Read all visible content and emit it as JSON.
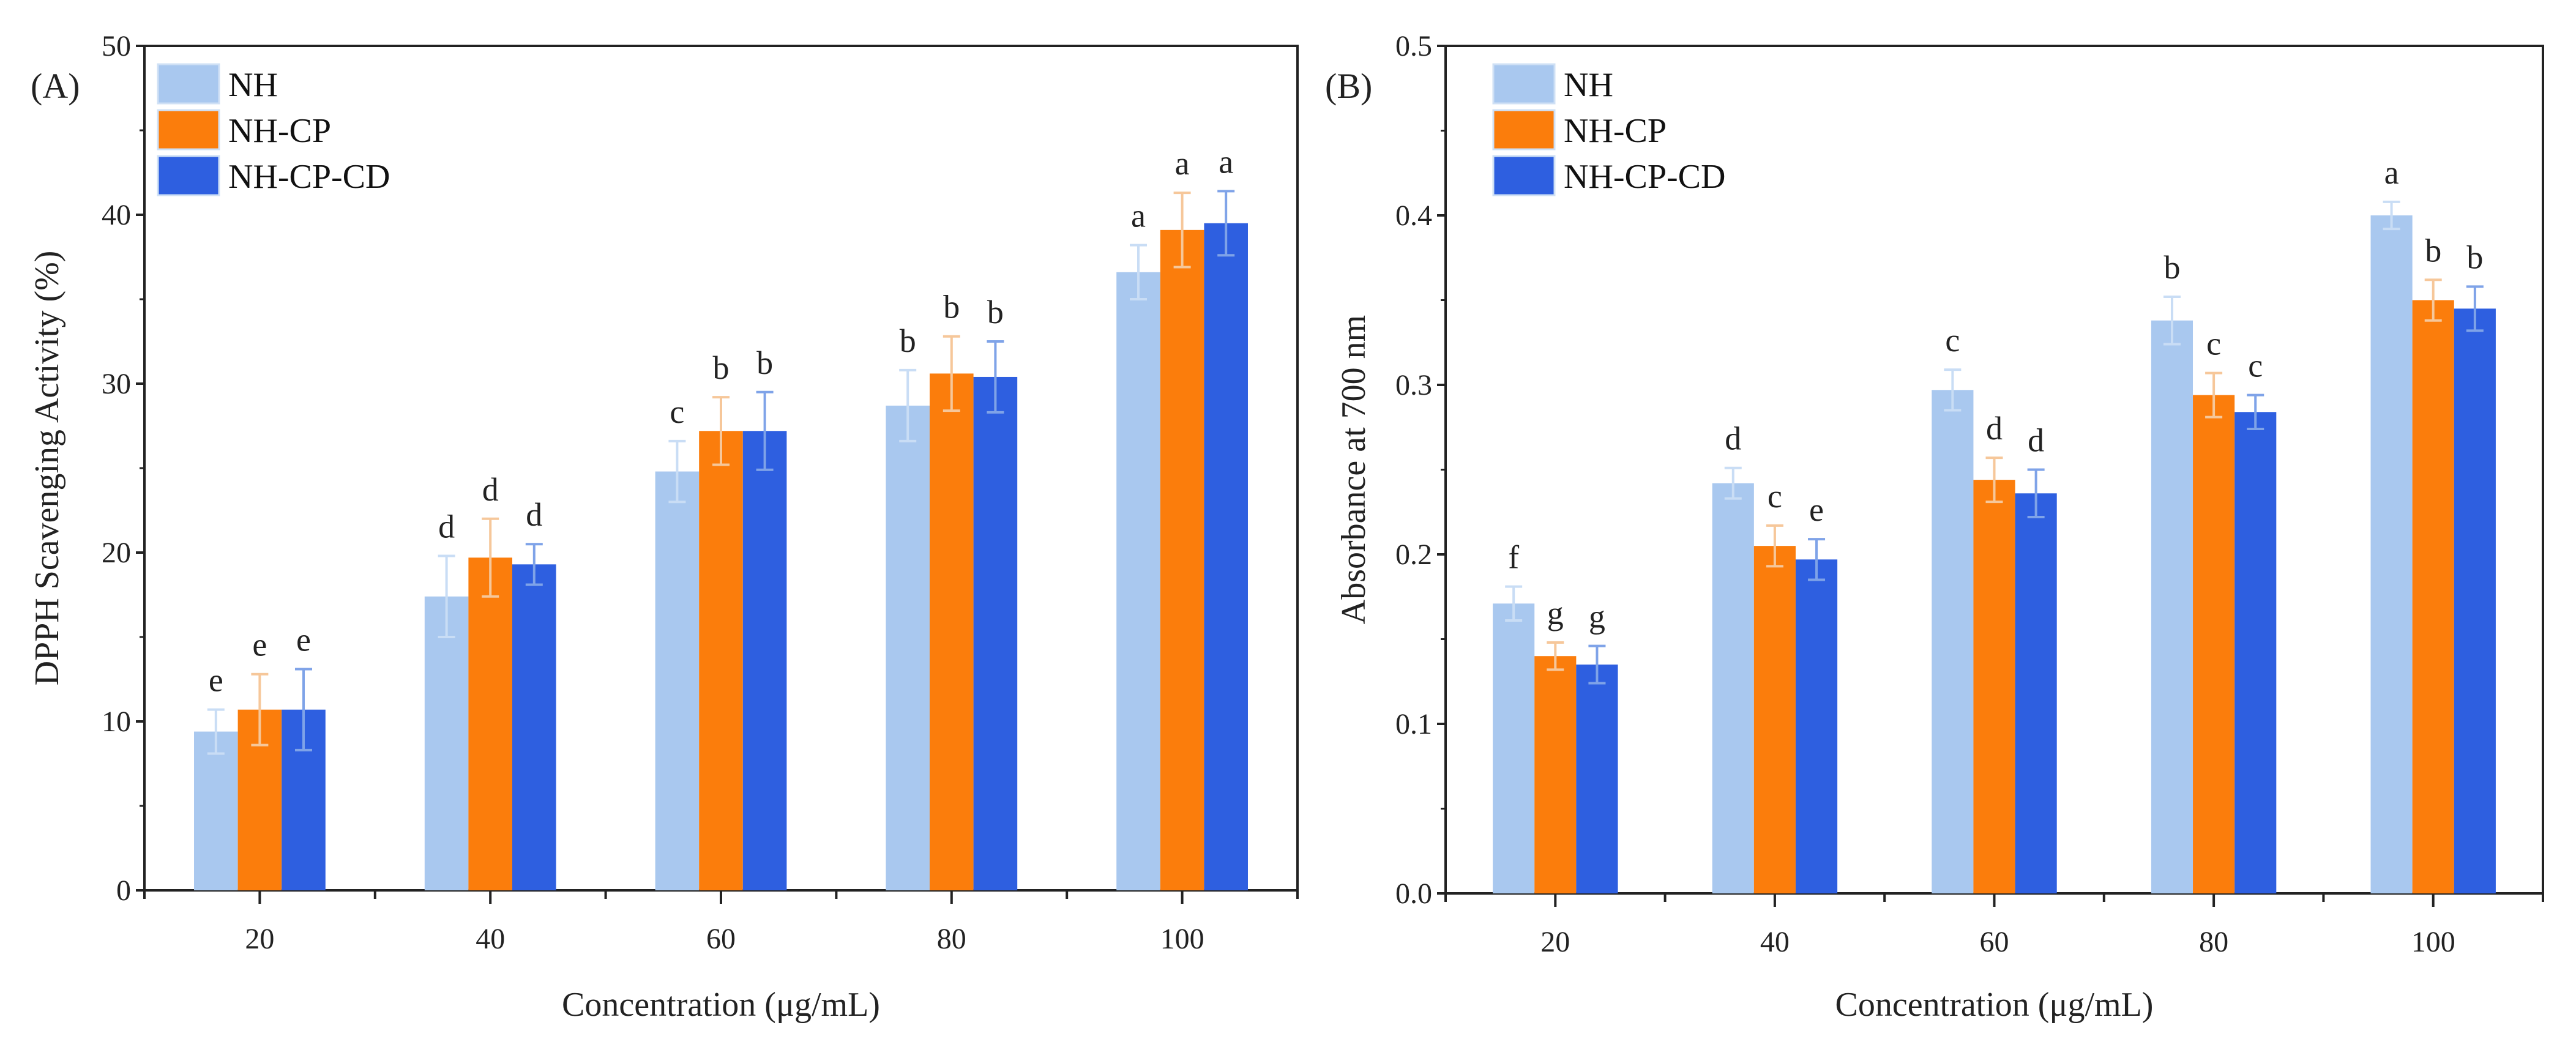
{
  "chart_data": [
    {
      "type": "bar",
      "panel_label": "(A)",
      "xlabel": "Concentration (μg/mL)",
      "ylabel": "DPPH Scavenging Activity (%)",
      "categories": [
        "20",
        "40",
        "60",
        "80",
        "100"
      ],
      "ylim": [
        0,
        50
      ],
      "yticks": [
        "0",
        "10",
        "20",
        "30",
        "40",
        "50"
      ],
      "ytick_values": [
        0,
        10,
        20,
        30,
        40,
        50
      ],
      "legend_position": "top-left",
      "series": [
        {
          "name": "NH",
          "color": "#a9c8ef",
          "error_color": "#c9ddf5",
          "values": [
            9.4,
            17.4,
            24.8,
            28.7,
            36.6
          ],
          "errors": [
            1.3,
            2.4,
            1.8,
            2.1,
            1.6
          ],
          "letters": [
            "e",
            "d",
            "c",
            "b",
            "a"
          ]
        },
        {
          "name": "NH-CP",
          "color": "#fb7d0c",
          "error_color": "#f6c79a",
          "values": [
            10.7,
            19.7,
            27.2,
            30.6,
            39.1
          ],
          "errors": [
            2.1,
            2.3,
            2.0,
            2.2,
            2.2
          ],
          "letters": [
            "e",
            "d",
            "b",
            "b",
            "a"
          ]
        },
        {
          "name": "NH-CP-CD",
          "color": "#2e5fe0",
          "error_color": "#7fa3e8",
          "values": [
            10.7,
            19.3,
            27.2,
            30.4,
            39.5
          ],
          "errors": [
            2.4,
            1.2,
            2.3,
            2.1,
            1.9
          ],
          "letters": [
            "e",
            "d",
            "b",
            "b",
            "a"
          ]
        }
      ]
    },
    {
      "type": "bar",
      "panel_label": "(B)",
      "xlabel": "Concentration (μg/mL)",
      "ylabel": "Absorbance at 700 nm",
      "categories": [
        "20",
        "40",
        "60",
        "80",
        "100"
      ],
      "ylim": [
        0,
        0.5
      ],
      "yticks": [
        "0.0",
        "0.1",
        "0.2",
        "0.3",
        "0.4",
        "0.5"
      ],
      "ytick_values": [
        0,
        0.1,
        0.2,
        0.3,
        0.4,
        0.5
      ],
      "legend_position": "top-left",
      "series": [
        {
          "name": "NH",
          "color": "#a9c8ef",
          "error_color": "#c9ddf5",
          "values": [
            0.171,
            0.242,
            0.297,
            0.338,
            0.4
          ],
          "errors": [
            0.01,
            0.009,
            0.012,
            0.014,
            0.008
          ],
          "letters": [
            "f",
            "d",
            "c",
            "b",
            "a"
          ]
        },
        {
          "name": "NH-CP",
          "color": "#fb7d0c",
          "error_color": "#f6c79a",
          "values": [
            0.14,
            0.205,
            0.244,
            0.294,
            0.35
          ],
          "errors": [
            0.008,
            0.012,
            0.013,
            0.013,
            0.012
          ],
          "letters": [
            "g",
            "c",
            "d",
            "c",
            "b"
          ]
        },
        {
          "name": "NH-CP-CD",
          "color": "#2e5fe0",
          "error_color": "#7fa3e8",
          "values": [
            0.135,
            0.197,
            0.236,
            0.284,
            0.345
          ],
          "errors": [
            0.011,
            0.012,
            0.014,
            0.01,
            0.013
          ],
          "letters": [
            "g",
            "e",
            "d",
            "c",
            "b"
          ]
        }
      ]
    }
  ]
}
